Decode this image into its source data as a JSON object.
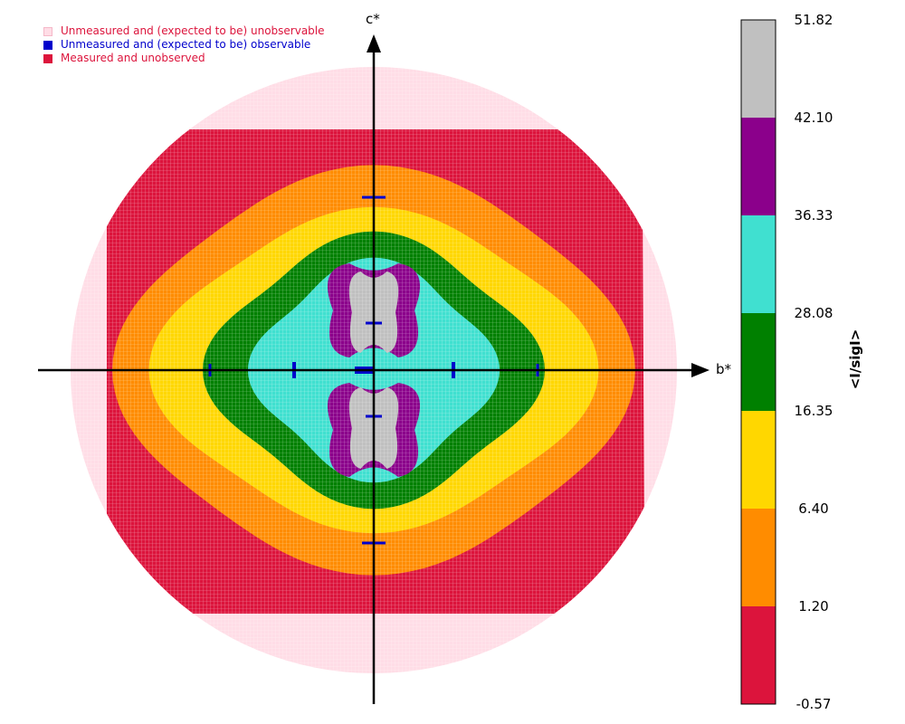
{
  "chart_data": {
    "type": "heatmap",
    "description_free": true,
    "axes": {
      "horizontal": "b*",
      "vertical": "c*"
    },
    "legend": [
      {
        "label": "Unmeasured and (expected to be) unobservable",
        "color": "#ffdde6",
        "text_color": "#dc143c"
      },
      {
        "label": "Unmeasured and (expected to be) observable",
        "color": "#0000cc",
        "text_color": "#0000cc"
      },
      {
        "label": "Measured and unobserved",
        "color": "#dc143c",
        "text_color": "#dc143c"
      }
    ],
    "colorbar": {
      "title": "<I/sigI>",
      "ticks": [
        "51.82",
        "42.10",
        "36.33",
        "28.08",
        "16.35",
        "6.40",
        "1.20",
        "-0.57"
      ],
      "bands": [
        {
          "from": -0.57,
          "to": 1.2,
          "color": "#dc143c"
        },
        {
          "from": 1.2,
          "to": 6.4,
          "color": "#ff8c00"
        },
        {
          "from": 6.4,
          "to": 16.35,
          "color": "#ffd700"
        },
        {
          "from": 16.35,
          "to": 28.08,
          "color": "#008000"
        },
        {
          "from": 28.08,
          "to": 36.33,
          "color": "#40e0d0"
        },
        {
          "from": 36.33,
          "to": 42.1,
          "color": "#8b008b"
        },
        {
          "from": 42.1,
          "to": 51.82,
          "color": "#c0c0c0"
        }
      ]
    }
  }
}
